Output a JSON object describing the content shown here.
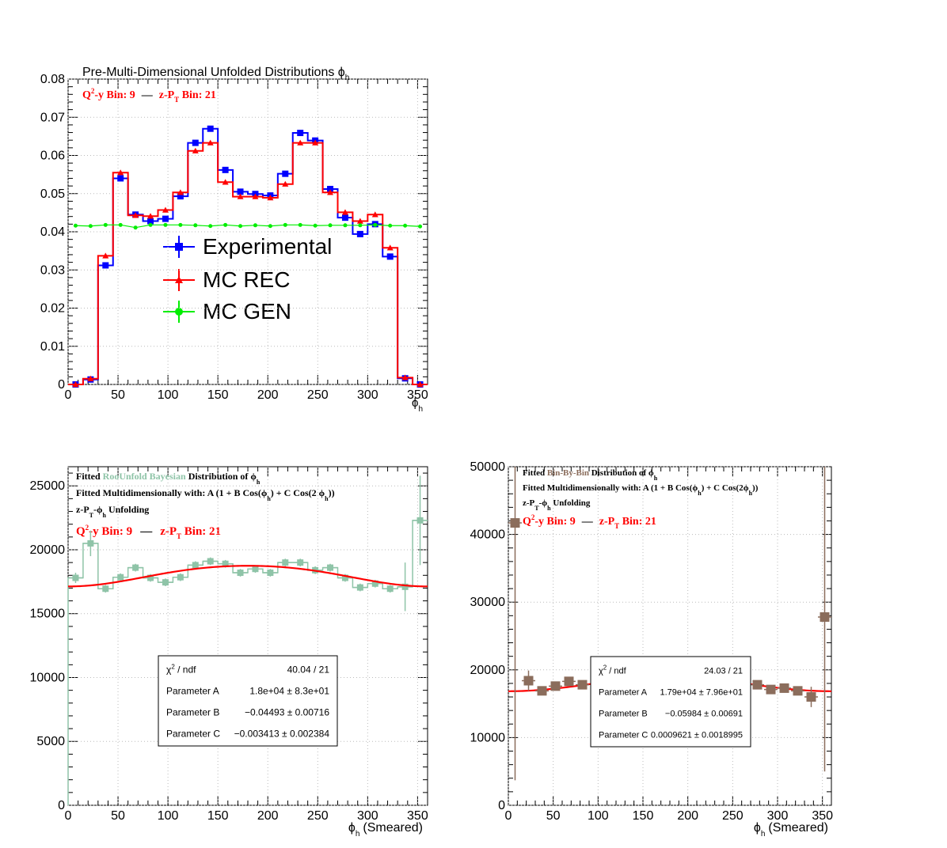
{
  "chart_data": [
    {
      "type": "line",
      "title": "Pre-Multi-Dimensional Unfolded Distributions ϕ",
      "title_sub": "h",
      "annotation": {
        "q2y": "Q",
        "q2y_sup": "2",
        "q2y_rest": "-y Bin: 9",
        "dash": "—",
        "zpt": "z-P",
        "zpt_sub": "T",
        "zpt_rest": " Bin: 21"
      },
      "xlabel": "ϕ",
      "xlabel_sub": "h",
      "xlim": [
        0,
        360
      ],
      "ylim": [
        0,
        0.08
      ],
      "xticks": [
        "0",
        "50",
        "100",
        "150",
        "200",
        "250",
        "300",
        "350"
      ],
      "yticks": [
        "0",
        "0.01",
        "0.02",
        "0.03",
        "0.04",
        "0.05",
        "0.06",
        "0.07",
        "0.08"
      ],
      "x": [
        7.5,
        22.5,
        37.5,
        52.5,
        67.5,
        82.5,
        97.5,
        112.5,
        127.5,
        142.5,
        157.5,
        172.5,
        187.5,
        202.5,
        217.5,
        232.5,
        247.5,
        262.5,
        277.5,
        292.5,
        307.5,
        322.5,
        337.5,
        352.5
      ],
      "series": [
        {
          "name": "Experimental",
          "color": "#0000ff",
          "marker": "square",
          "values": [
            0.0,
            0.0013,
            0.0312,
            0.054,
            0.0445,
            0.0428,
            0.0434,
            0.0493,
            0.0633,
            0.067,
            0.0562,
            0.0505,
            0.0499,
            0.0495,
            0.0552,
            0.0659,
            0.0639,
            0.0512,
            0.0437,
            0.0394,
            0.042,
            0.0335,
            0.0016,
            0.0
          ]
        },
        {
          "name": "MC REC",
          "color": "#ff0000",
          "marker": "triangle",
          "values": [
            0.0,
            0.0015,
            0.0337,
            0.0555,
            0.0443,
            0.0441,
            0.0457,
            0.0503,
            0.0612,
            0.0633,
            0.053,
            0.0492,
            0.0492,
            0.0489,
            0.0525,
            0.0633,
            0.0633,
            0.0503,
            0.0451,
            0.0428,
            0.0445,
            0.0358,
            0.0018,
            0.0
          ]
        },
        {
          "name": "MC GEN",
          "color": "#00ee00",
          "marker": "circle",
          "values": [
            0.0416,
            0.0415,
            0.0418,
            0.0418,
            0.0411,
            0.0418,
            0.0418,
            0.0418,
            0.0417,
            0.0415,
            0.0418,
            0.0415,
            0.0417,
            0.0415,
            0.0418,
            0.0418,
            0.0416,
            0.0417,
            0.0417,
            0.0417,
            0.0418,
            0.0416,
            0.0416,
            0.0414
          ]
        }
      ],
      "legend": [
        "Experimental",
        "MC REC",
        "MC GEN"
      ]
    },
    {
      "type": "line",
      "header": [
        {
          "parts": [
            [
              "Fitted ",
              "#000"
            ],
            [
              "RooUnfold Bayesian",
              "#8fc4a8"
            ],
            [
              " Distribution of ",
              "#000"
            ],
            [
              "ϕ",
              "#000"
            ]
          ],
          "sub": "h"
        },
        {
          "text": "Fitted Multidimensionally with: A (1 + B Cos(ϕ",
          "sub": "h",
          "text2": ") + C Cos(2 ϕ",
          "sub2": "h",
          "text3": "))"
        },
        {
          "text": "z-P",
          "sub": "T",
          "text2": "-ϕ",
          "sub2": "h",
          "text3": " Unfolding"
        }
      ],
      "annotation": {
        "q2y": "Q",
        "q2y_sup": "2",
        "q2y_rest": "-y Bin: 9",
        "dash": "—",
        "zpt": "z-P",
        "zpt_sub": "T",
        "zpt_rest": " Bin: 21"
      },
      "xlabel": "ϕ",
      "xlabel_sub": "h",
      "xlabel_rest": "(Smeared)",
      "xlim": [
        0,
        360
      ],
      "ylim": [
        0,
        26500
      ],
      "xticks": [
        "0",
        "50",
        "100",
        "150",
        "200",
        "250",
        "300",
        "350"
      ],
      "yticks": [
        "0",
        "5000",
        "10000",
        "15000",
        "20000",
        "25000"
      ],
      "color": "#8fc4a8",
      "x": [
        7.5,
        22.5,
        37.5,
        52.5,
        67.5,
        82.5,
        97.5,
        112.5,
        127.5,
        142.5,
        157.5,
        172.5,
        187.5,
        202.5,
        217.5,
        232.5,
        247.5,
        262.5,
        277.5,
        292.5,
        307.5,
        322.5,
        337.5,
        352.5
      ],
      "values": [
        17800,
        20500,
        16950,
        17850,
        18600,
        17800,
        17450,
        17850,
        18800,
        19100,
        18900,
        18200,
        18500,
        18200,
        19000,
        19000,
        18400,
        18600,
        17800,
        17050,
        17350,
        16950,
        17100,
        22300
      ],
      "errors": [
        400,
        1000,
        300,
        300,
        300,
        300,
        300,
        300,
        300,
        300,
        300,
        300,
        300,
        300,
        300,
        300,
        300,
        300,
        300,
        300,
        300,
        300,
        1900,
        3500
      ],
      "fit": {
        "A": 18000,
        "B": -0.04493,
        "C": -0.003413,
        "color": "#ff0000"
      },
      "stats": [
        {
          "label": "χ",
          "sup": "2",
          "label_rest": " / ndf",
          "value": "40.04 / 21"
        },
        {
          "label": "Parameter A",
          "value": "1.8e+04 ± 8.3e+01"
        },
        {
          "label": "Parameter B",
          "value": "−0.04493 ± 0.00716"
        },
        {
          "label": "Parameter C",
          "value": "−0.003413 ± 0.002384"
        }
      ]
    },
    {
      "type": "scatter",
      "header": [
        {
          "parts": [
            [
              "Fitted ",
              "#000"
            ],
            [
              "Bin-By-Bin",
              "#8b6d5c"
            ],
            [
              " Distribution of ϕ",
              "#000"
            ]
          ],
          "sub": "h"
        },
        {
          "text": "Fitted Multidimensionally with: A (1 + B Cos(ϕ",
          "sub": "h",
          "text2": ") + C Cos(2ϕ",
          "sub2": "h",
          "text3": "))"
        },
        {
          "text": "z-P",
          "sub": "T",
          "text2": "-ϕ",
          "sub2": "h",
          "text3": " Unfolding"
        }
      ],
      "annotation": {
        "q2y": "Q",
        "q2y_sup": "2",
        "q2y_rest": "-y Bin: 9",
        "dash": "—",
        "zpt": "z-P",
        "zpt_sub": "T",
        "zpt_rest": " Bin: 21"
      },
      "xlabel": "ϕ",
      "xlabel_sub": "h",
      "xlabel_rest": "(Smeared)",
      "xlim": [
        0,
        360
      ],
      "ylim": [
        0,
        50000
      ],
      "xticks": [
        "0",
        "50",
        "100",
        "150",
        "200",
        "250",
        "300",
        "350"
      ],
      "yticks": [
        "0",
        "10000",
        "20000",
        "30000",
        "40000",
        "50000"
      ],
      "color": "#8b6d5c",
      "x": [
        7.5,
        22.5,
        37.5,
        52.5,
        67.5,
        82.5,
        277.5,
        292.5,
        307.5,
        322.5,
        337.5,
        352.5
      ],
      "values": [
        41700,
        18400,
        16900,
        17600,
        18300,
        17800,
        17800,
        17100,
        17300,
        16900,
        16000,
        27800
      ],
      "errors": [
        38000,
        1500,
        500,
        500,
        500,
        500,
        500,
        500,
        500,
        500,
        1500,
        22800
      ],
      "fit": {
        "A": 17900,
        "B": -0.05984,
        "C": 0.0009621,
        "color": "#ff0000"
      },
      "stats": [
        {
          "label": "χ",
          "sup": "2",
          "label_rest": " / ndf",
          "value": "24.03 / 21"
        },
        {
          "label": "Parameter A",
          "value": "1.79e+04 ± 7.96e+01"
        },
        {
          "label": "Parameter B",
          "value": "−0.05984 ± 0.00691"
        },
        {
          "label": "Parameter C",
          "value": "0.0009621 ± 0.0018995"
        }
      ]
    }
  ]
}
